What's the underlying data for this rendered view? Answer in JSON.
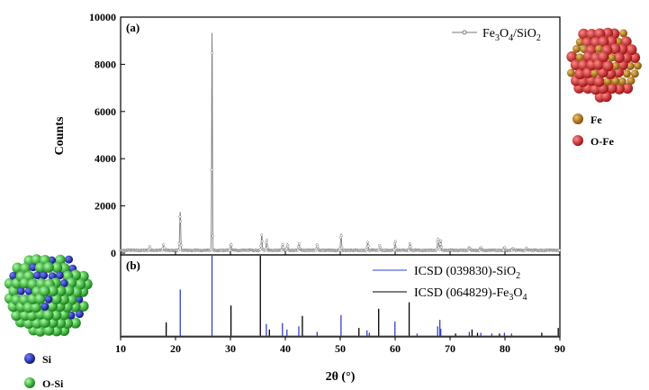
{
  "chart_data": [
    {
      "type": "line",
      "panel_label": "(a)",
      "ylabel": "Counts",
      "xlim": [
        10,
        90
      ],
      "ylim": [
        0,
        10000
      ],
      "yticks": [
        0,
        2000,
        4000,
        6000,
        8000,
        10000
      ],
      "legend_placement": "top-right",
      "series": [
        {
          "name": "Fe3O4/SiO2",
          "name_parts": {
            "a": "Fe",
            "s1": "3",
            "b": "O",
            "s2": "4",
            "c": "/SiO",
            "s3": "2"
          },
          "color": "#7a7a7a",
          "baseline": 120,
          "peaks": [
            [
              15.3,
              280
            ],
            [
              17.8,
              330
            ],
            [
              20.85,
              1750
            ],
            [
              26.65,
              9450
            ],
            [
              30.1,
              380
            ],
            [
              35.7,
              780
            ],
            [
              36.6,
              580
            ],
            [
              39.5,
              400
            ],
            [
              40.4,
              380
            ],
            [
              42.5,
              430
            ],
            [
              45.8,
              380
            ],
            [
              50.15,
              820
            ],
            [
              55.0,
              480
            ],
            [
              57.2,
              330
            ],
            [
              60.0,
              520
            ],
            [
              62.7,
              430
            ],
            [
              67.8,
              640
            ],
            [
              68.3,
              550
            ],
            [
              73.5,
              250
            ],
            [
              75.6,
              250
            ],
            [
              79.9,
              260
            ],
            [
              81.5,
              220
            ],
            [
              83.9,
              200
            ]
          ]
        }
      ]
    },
    {
      "type": "bar",
      "panel_label": "(b)",
      "xlabel": "2θ (°)",
      "xlim": [
        10,
        90
      ],
      "xticks": [
        10,
        20,
        30,
        40,
        50,
        60,
        70,
        80,
        90
      ],
      "legend_placement": "top-right",
      "series": [
        {
          "name": "ICSD (039830)-SiO2",
          "name_parts": {
            "a": "ICSD (039830)-SiO",
            "s1": "2"
          },
          "color": "#3340cc",
          "sticks": [
            [
              20.86,
              0.58
            ],
            [
              26.64,
              1.0
            ],
            [
              36.54,
              0.15
            ],
            [
              39.47,
              0.16
            ],
            [
              40.29,
              0.08
            ],
            [
              42.45,
              0.12
            ],
            [
              45.79,
              0.05
            ],
            [
              50.14,
              0.26
            ],
            [
              54.87,
              0.07
            ],
            [
              55.3,
              0.04
            ],
            [
              59.96,
              0.18
            ],
            [
              64.0,
              0.03
            ],
            [
              67.74,
              0.12
            ],
            [
              68.14,
              0.2
            ],
            [
              68.3,
              0.09
            ],
            [
              73.5,
              0.05
            ],
            [
              75.6,
              0.04
            ],
            [
              77.6,
              0.03
            ],
            [
              79.9,
              0.04
            ],
            [
              81.2,
              0.03
            ]
          ]
        },
        {
          "name": "ICSD (064829)-Fe3O4",
          "name_parts": {
            "a": "ICSD (064829)-Fe",
            "s1": "3",
            "b": "O",
            "s2": "4"
          },
          "color": "#000000",
          "sticks": [
            [
              18.3,
              0.17
            ],
            [
              30.1,
              0.38
            ],
            [
              35.45,
              1.0
            ],
            [
              37.1,
              0.08
            ],
            [
              43.1,
              0.25
            ],
            [
              53.4,
              0.1
            ],
            [
              57.0,
              0.34
            ],
            [
              62.55,
              0.42
            ],
            [
              71.0,
              0.03
            ],
            [
              74.0,
              0.08
            ],
            [
              75.0,
              0.04
            ],
            [
              79.0,
              0.03
            ],
            [
              86.7,
              0.04
            ],
            [
              89.7,
              0.1
            ]
          ]
        }
      ]
    }
  ],
  "key_fe3o4": {
    "items": [
      {
        "label": "Fe",
        "color": "#a0670f"
      },
      {
        "label": "O-Fe",
        "color": "#d81e1e"
      }
    ]
  },
  "key_sio2": {
    "items": [
      {
        "label": "Si",
        "color": "#1a27c8"
      },
      {
        "label": "O-Si",
        "color": "#22c022"
      }
    ]
  }
}
